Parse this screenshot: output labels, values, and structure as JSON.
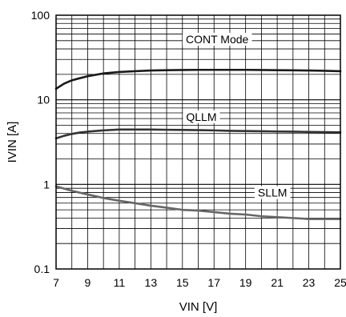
{
  "chart_data": {
    "type": "line",
    "xlabel": "VIN [V]",
    "ylabel": "IVIN [A]",
    "xlim": [
      7,
      25
    ],
    "ylim": [
      0.1,
      100
    ],
    "yscale": "log",
    "grid": true,
    "x_ticks": [
      7,
      9,
      11,
      13,
      15,
      17,
      19,
      21,
      23,
      25
    ],
    "x_tick_labels": [
      "7",
      "9",
      "11",
      "13",
      "15",
      "17",
      "19",
      "21",
      "23",
      "25"
    ],
    "y_ticks": [
      0.1,
      1,
      10,
      100
    ],
    "y_tick_labels": [
      "0.1",
      "1",
      "10",
      "100"
    ],
    "series": [
      {
        "name": "CONT Mode",
        "color": "#1a1a1a",
        "x": [
          7,
          7.5,
          8,
          8.5,
          9,
          10,
          11,
          12,
          13,
          14,
          15,
          16,
          17,
          18,
          19,
          20,
          21,
          22,
          23,
          24,
          25
        ],
        "y": [
          13.5,
          15.5,
          17,
          18,
          19,
          20.5,
          21.3,
          21.8,
          22.2,
          22.4,
          22.5,
          22.6,
          22.6,
          22.6,
          22.6,
          22.5,
          22.4,
          22.3,
          22.2,
          22.0,
          21.8
        ]
      },
      {
        "name": "QLLM",
        "color": "#333333",
        "x": [
          7,
          7.5,
          8,
          8.5,
          9,
          10,
          11,
          12,
          13,
          14,
          15,
          16,
          17,
          18,
          19,
          20,
          21,
          22,
          23,
          24,
          25
        ],
        "y": [
          3.5,
          3.75,
          3.95,
          4.1,
          4.2,
          4.35,
          4.45,
          4.45,
          4.45,
          4.42,
          4.4,
          4.38,
          4.35,
          4.3,
          4.27,
          4.25,
          4.22,
          4.2,
          4.17,
          4.15,
          4.12
        ]
      },
      {
        "name": "SLLM",
        "color": "#666666",
        "x": [
          7,
          8,
          9,
          10,
          11,
          12,
          13,
          14,
          15,
          16,
          17,
          18,
          19,
          20,
          21,
          22,
          23,
          24,
          25
        ],
        "y": [
          0.95,
          0.84,
          0.76,
          0.69,
          0.64,
          0.6,
          0.56,
          0.53,
          0.5,
          0.49,
          0.47,
          0.45,
          0.44,
          0.42,
          0.41,
          0.4,
          0.39,
          0.39,
          0.39
        ]
      }
    ]
  }
}
